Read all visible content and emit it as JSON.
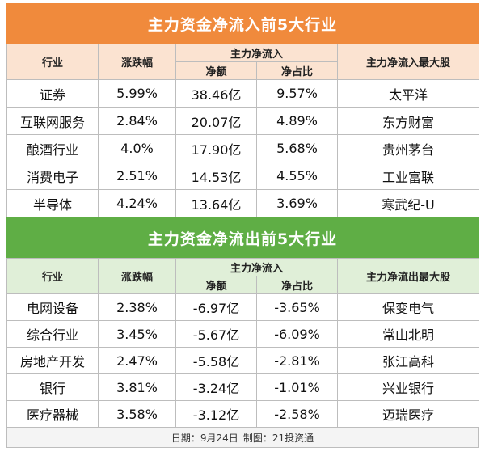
{
  "inflow": {
    "title": "主力资金净流入前5大行业",
    "headers": {
      "industry": "行业",
      "change": "涨跌幅",
      "main_net": "主力净流入",
      "net_amount": "净额",
      "net_ratio": "净占比",
      "top_stock": "主力净流入最大股"
    },
    "rows": [
      {
        "industry": "证券",
        "change": "5.99%",
        "amount": "38.46亿",
        "ratio": "9.57%",
        "stock": "太平洋"
      },
      {
        "industry": "互联网服务",
        "change": "2.84%",
        "amount": "20.07亿",
        "ratio": "4.89%",
        "stock": "东方财富"
      },
      {
        "industry": "酿酒行业",
        "change": "4.0%",
        "amount": "17.90亿",
        "ratio": "5.68%",
        "stock": "贵州茅台"
      },
      {
        "industry": "消费电子",
        "change": "2.51%",
        "amount": "14.53亿",
        "ratio": "4.55%",
        "stock": "工业富联"
      },
      {
        "industry": "半导体",
        "change": "4.24%",
        "amount": "13.64亿",
        "ratio": "3.69%",
        "stock": "寒武纪-U"
      }
    ]
  },
  "outflow": {
    "title": "主力资金净流出前5大行业",
    "headers": {
      "industry": "行业",
      "change": "涨跌幅",
      "main_net": "主力净流入",
      "net_amount": "净额",
      "net_ratio": "净占比",
      "top_stock": "主力净流出最大股"
    },
    "rows": [
      {
        "industry": "电网设备",
        "change": "2.38%",
        "amount": "-6.97亿",
        "ratio": "-3.65%",
        "stock": "保变电气"
      },
      {
        "industry": "综合行业",
        "change": "3.45%",
        "amount": "-5.67亿",
        "ratio": "-6.09%",
        "stock": "常山北明"
      },
      {
        "industry": "房地产开发",
        "change": "2.47%",
        "amount": "-5.58亿",
        "ratio": "-2.81%",
        "stock": "张江高科"
      },
      {
        "industry": "银行",
        "change": "3.81%",
        "amount": "-3.24亿",
        "ratio": "-1.01%",
        "stock": "兴业银行"
      },
      {
        "industry": "医疗器械",
        "change": "3.58%",
        "amount": "-3.12亿",
        "ratio": "-2.58%",
        "stock": "迈瑞医疗"
      }
    ]
  },
  "footer": {
    "date": "日期：9月24日",
    "maker": "制图：21投资通"
  }
}
